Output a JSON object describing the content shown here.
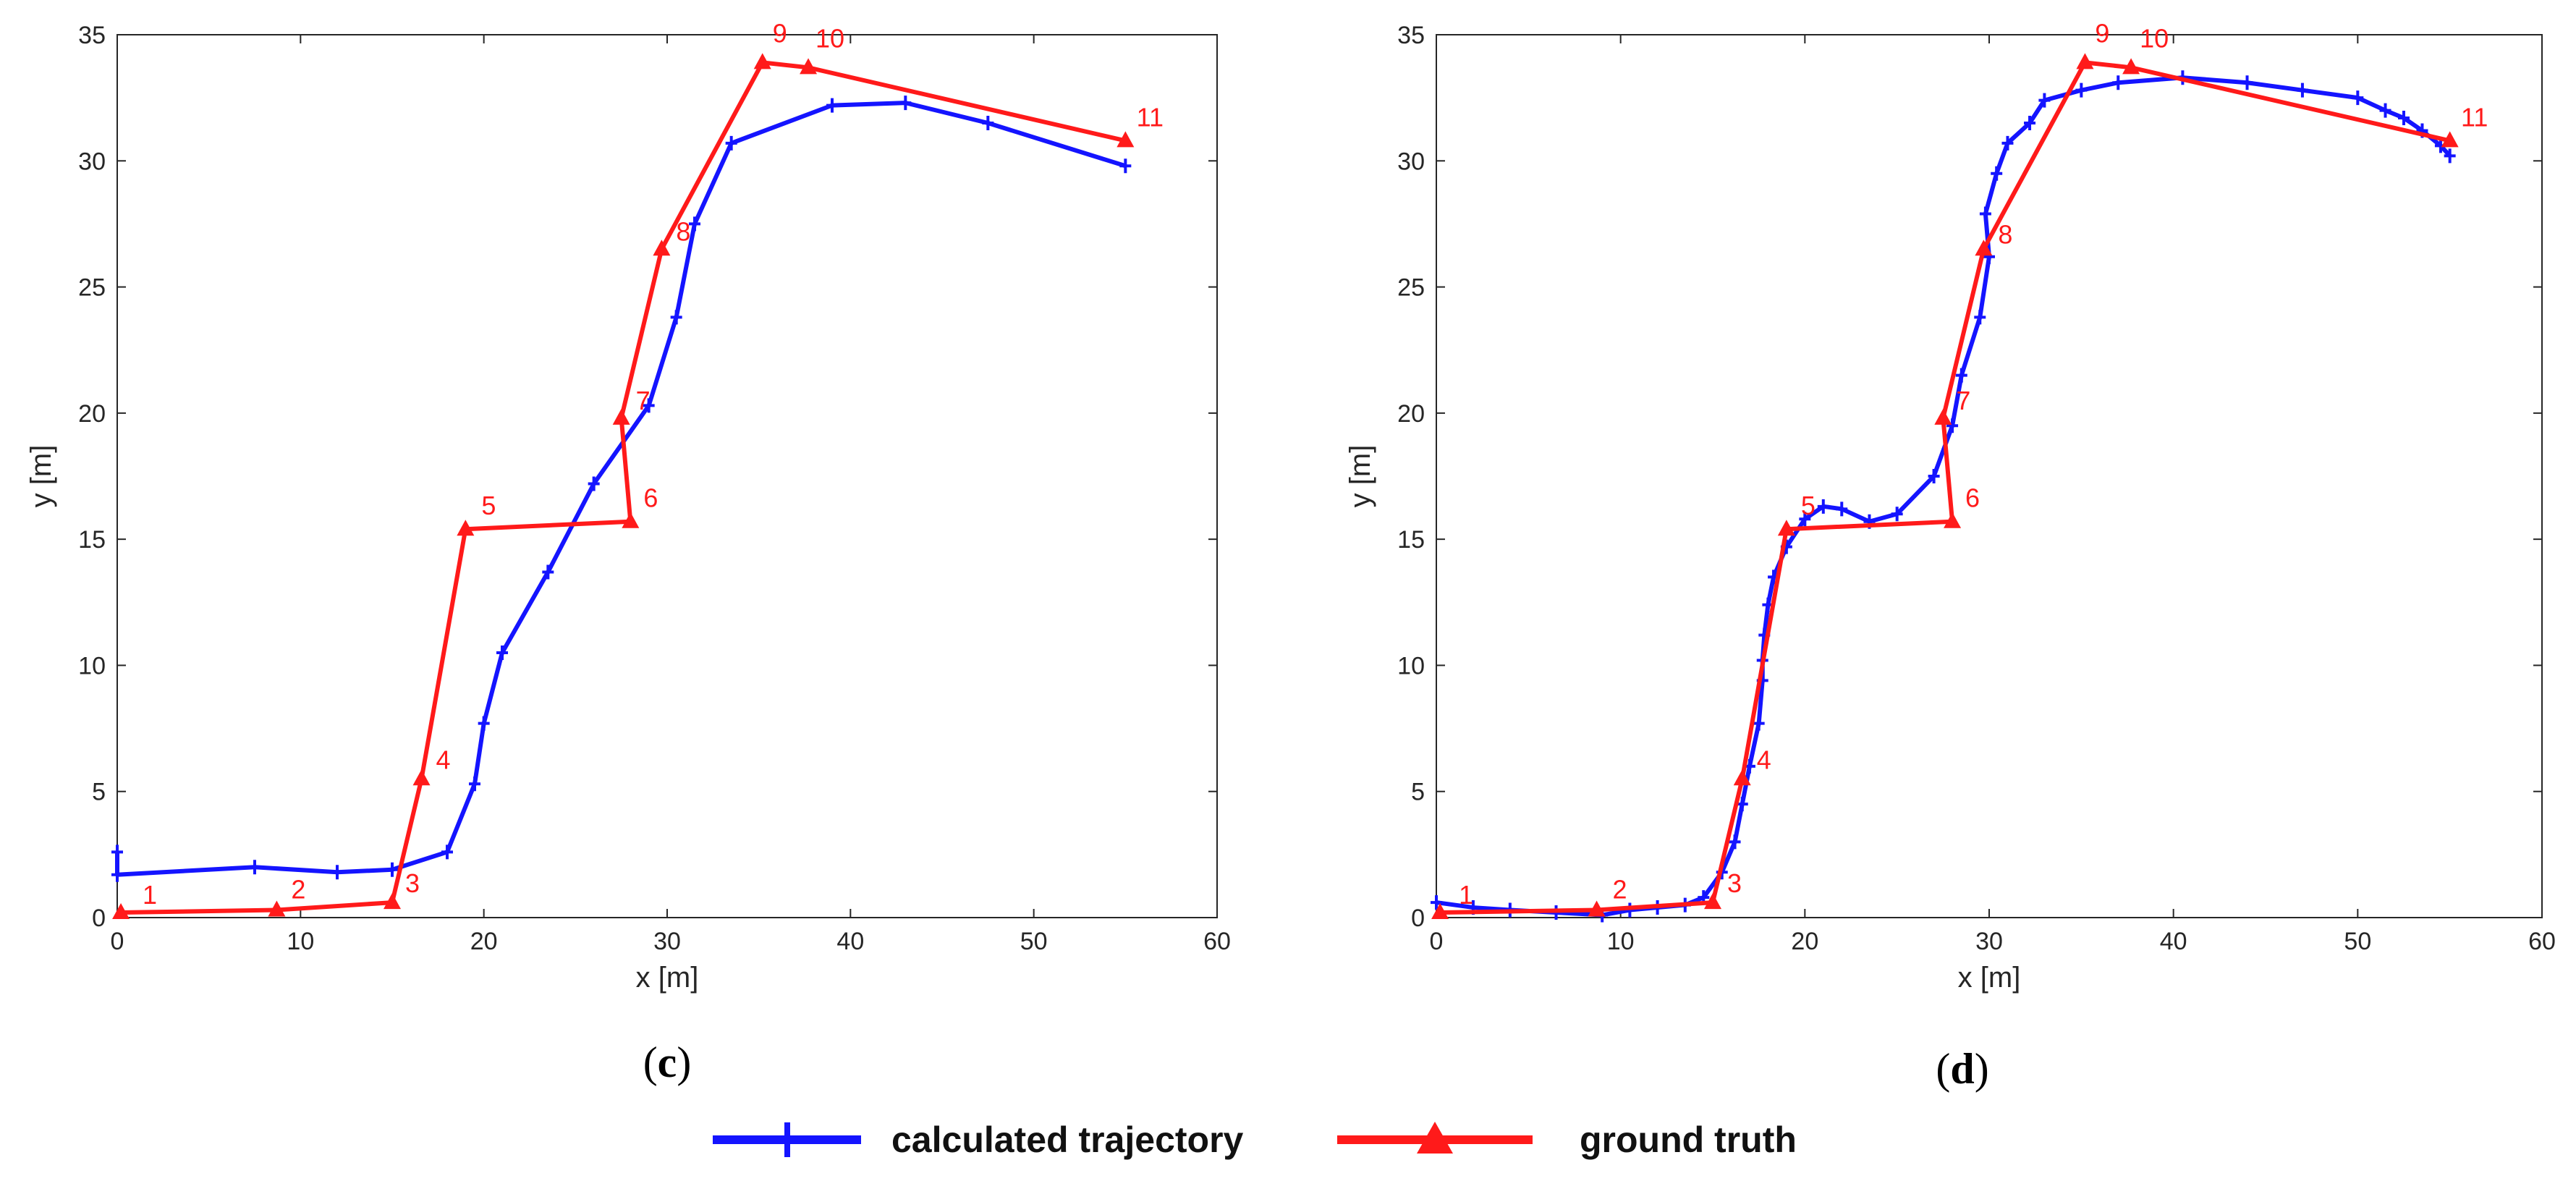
{
  "chart_data": [
    {
      "type": "line",
      "panel_label": "c",
      "xlabel": "x [m]",
      "ylabel": "y [m]",
      "xlim": [
        0,
        60
      ],
      "ylim": [
        0,
        35
      ],
      "xticks": [
        0,
        10,
        20,
        30,
        40,
        50,
        60
      ],
      "yticks": [
        0,
        5,
        10,
        15,
        20,
        25,
        30,
        35
      ],
      "series": [
        {
          "name": "calculated trajectory",
          "color": "#1414ff",
          "marker": "plus",
          "points": [
            [
              0,
              2.6
            ],
            [
              0,
              1.7
            ],
            [
              7.5,
              2.0
            ],
            [
              12,
              1.8
            ],
            [
              15,
              1.9
            ],
            [
              18,
              2.6
            ],
            [
              19.5,
              5.3
            ],
            [
              20,
              7.7
            ],
            [
              21,
              10.5
            ],
            [
              23.5,
              13.7
            ],
            [
              26,
              17.2
            ],
            [
              29,
              20.3
            ],
            [
              30.5,
              23.8
            ],
            [
              31.5,
              27.5
            ],
            [
              33.5,
              30.7
            ],
            [
              39,
              32.2
            ],
            [
              43,
              32.3
            ],
            [
              47.5,
              31.5
            ],
            [
              55,
              29.8
            ]
          ]
        },
        {
          "name": "ground truth",
          "color": "#ff1a1a",
          "marker": "triangle",
          "points": [
            [
              0.2,
              0.2
            ],
            [
              8.7,
              0.3
            ],
            [
              15,
              0.6
            ],
            [
              16.6,
              5.5
            ],
            [
              19,
              15.4
            ],
            [
              28,
              15.7
            ],
            [
              27.5,
              19.8
            ],
            [
              29.7,
              26.5
            ],
            [
              35.2,
              33.9
            ],
            [
              37.7,
              33.7
            ],
            [
              55,
              30.8
            ]
          ],
          "labels": [
            "1",
            "2",
            "3",
            "4",
            "5",
            "6",
            "7",
            "8",
            "9",
            "10",
            "11"
          ]
        }
      ]
    },
    {
      "type": "line",
      "panel_label": "d",
      "xlabel": "x [m]",
      "ylabel": "y [m]",
      "xlim": [
        0,
        60
      ],
      "ylim": [
        0,
        35
      ],
      "xticks": [
        0,
        10,
        20,
        30,
        40,
        50,
        60
      ],
      "yticks": [
        0,
        5,
        10,
        15,
        20,
        25,
        30,
        35
      ],
      "series": [
        {
          "name": "calculated trajectory",
          "color": "#1414ff",
          "marker": "plus",
          "points": [
            [
              0,
              0.6
            ],
            [
              2,
              0.4
            ],
            [
              4,
              0.3
            ],
            [
              6.5,
              0.2
            ],
            [
              9,
              0.1
            ],
            [
              10.5,
              0.3
            ],
            [
              12,
              0.4
            ],
            [
              13.5,
              0.5
            ],
            [
              14.5,
              0.8
            ],
            [
              15.5,
              1.8
            ],
            [
              16.2,
              3.0
            ],
            [
              16.6,
              4.5
            ],
            [
              17,
              6.0
            ],
            [
              17.5,
              7.7
            ],
            [
              17.7,
              9.4
            ],
            [
              17.7,
              10.2
            ],
            [
              17.8,
              11.2
            ],
            [
              18,
              12.4
            ],
            [
              18.3,
              13.5
            ],
            [
              19,
              14.7
            ],
            [
              20,
              15.8
            ],
            [
              21,
              16.3
            ],
            [
              22,
              16.2
            ],
            [
              23.5,
              15.7
            ],
            [
              25,
              16.0
            ],
            [
              27,
              17.5
            ],
            [
              28,
              19.5
            ],
            [
              28.5,
              21.5
            ],
            [
              29.5,
              23.8
            ],
            [
              30,
              26.2
            ],
            [
              29.8,
              27.9
            ],
            [
              30.4,
              29.5
            ],
            [
              31,
              30.7
            ],
            [
              32.2,
              31.5
            ],
            [
              33,
              32.4
            ],
            [
              35,
              32.8
            ],
            [
              37,
              33.1
            ],
            [
              40.5,
              33.3
            ],
            [
              44,
              33.1
            ],
            [
              47,
              32.8
            ],
            [
              50,
              32.5
            ],
            [
              51.5,
              32.0
            ],
            [
              52.5,
              31.7
            ],
            [
              53.5,
              31.2
            ],
            [
              54.5,
              30.6
            ],
            [
              55,
              30.2
            ]
          ]
        },
        {
          "name": "ground truth",
          "color": "#ff1a1a",
          "marker": "triangle",
          "points": [
            [
              0.2,
              0.2
            ],
            [
              8.7,
              0.3
            ],
            [
              15,
              0.6
            ],
            [
              16.6,
              5.5
            ],
            [
              19,
              15.4
            ],
            [
              28,
              15.7
            ],
            [
              27.5,
              19.8
            ],
            [
              29.7,
              26.5
            ],
            [
              35.2,
              33.9
            ],
            [
              37.7,
              33.7
            ],
            [
              55,
              30.8
            ]
          ],
          "labels": [
            "1",
            "2",
            "3",
            "4",
            "5",
            "6",
            "7",
            "8",
            "9",
            "10",
            "11"
          ]
        }
      ]
    }
  ],
  "legend": {
    "items": [
      {
        "label": "calculated trajectory",
        "color": "#1414ff",
        "marker": "plus"
      },
      {
        "label": "ground truth",
        "color": "#ff1a1a",
        "marker": "triangle"
      }
    ]
  }
}
